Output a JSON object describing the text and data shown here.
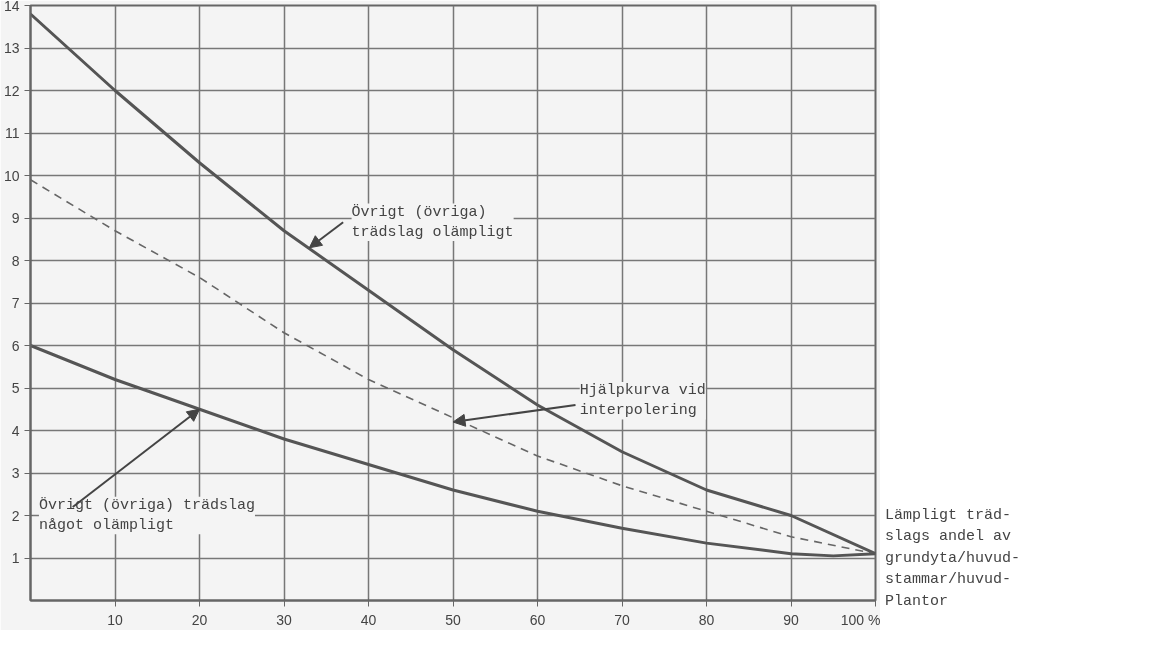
{
  "chart_data": {
    "type": "line",
    "xlabel": "Lämpligt träd-\nslags andel av\ngrundyta/huvud-\nstammar/huvud-\nPlantor",
    "xlim": [
      0,
      100
    ],
    "ylim": [
      0,
      14
    ],
    "xticks": [
      10,
      20,
      30,
      40,
      50,
      60,
      70,
      80,
      90,
      {
        "value": 100,
        "label": "100 %"
      }
    ],
    "yticks": [
      1,
      2,
      3,
      4,
      5,
      6,
      7,
      8,
      9,
      10,
      11,
      12,
      13,
      14
    ],
    "grid": true,
    "series": [
      {
        "color": "#555555",
        "line_style": "solid",
        "x": [
          0,
          10,
          20,
          30,
          40,
          50,
          60,
          70,
          80,
          90,
          100
        ],
        "values": [
          13.8,
          12.0,
          10.3,
          8.7,
          7.3,
          5.9,
          4.6,
          3.5,
          2.6,
          2.0,
          1.1
        ]
      },
      {
        "color": "#666666",
        "line_style": "dashed",
        "x": [
          0,
          10,
          20,
          30,
          40,
          50,
          60,
          70,
          80,
          90,
          100
        ],
        "values": [
          9.9,
          8.7,
          7.6,
          6.3,
          5.2,
          4.3,
          3.4,
          2.7,
          2.1,
          1.5,
          1.1
        ]
      },
      {
        "color": "#555555",
        "line_style": "solid",
        "x": [
          0,
          10,
          20,
          30,
          40,
          50,
          60,
          70,
          80,
          90,
          95,
          100
        ],
        "values": [
          6.0,
          5.2,
          4.5,
          3.8,
          3.2,
          2.6,
          2.1,
          1.7,
          1.35,
          1.1,
          1.05,
          1.1
        ]
      }
    ],
    "annotations": [
      {
        "text": "Övrigt (övriga)\nträdslag olämpligt",
        "x": 33,
        "y": 8.3
      },
      {
        "text": "Hjälpkurva vid\ninterpolering",
        "x": 50,
        "y": 4.2
      },
      {
        "text": "Övrigt (övriga) trädslag\nnågot olämpligt",
        "x": 20,
        "y": 4.5
      }
    ]
  }
}
